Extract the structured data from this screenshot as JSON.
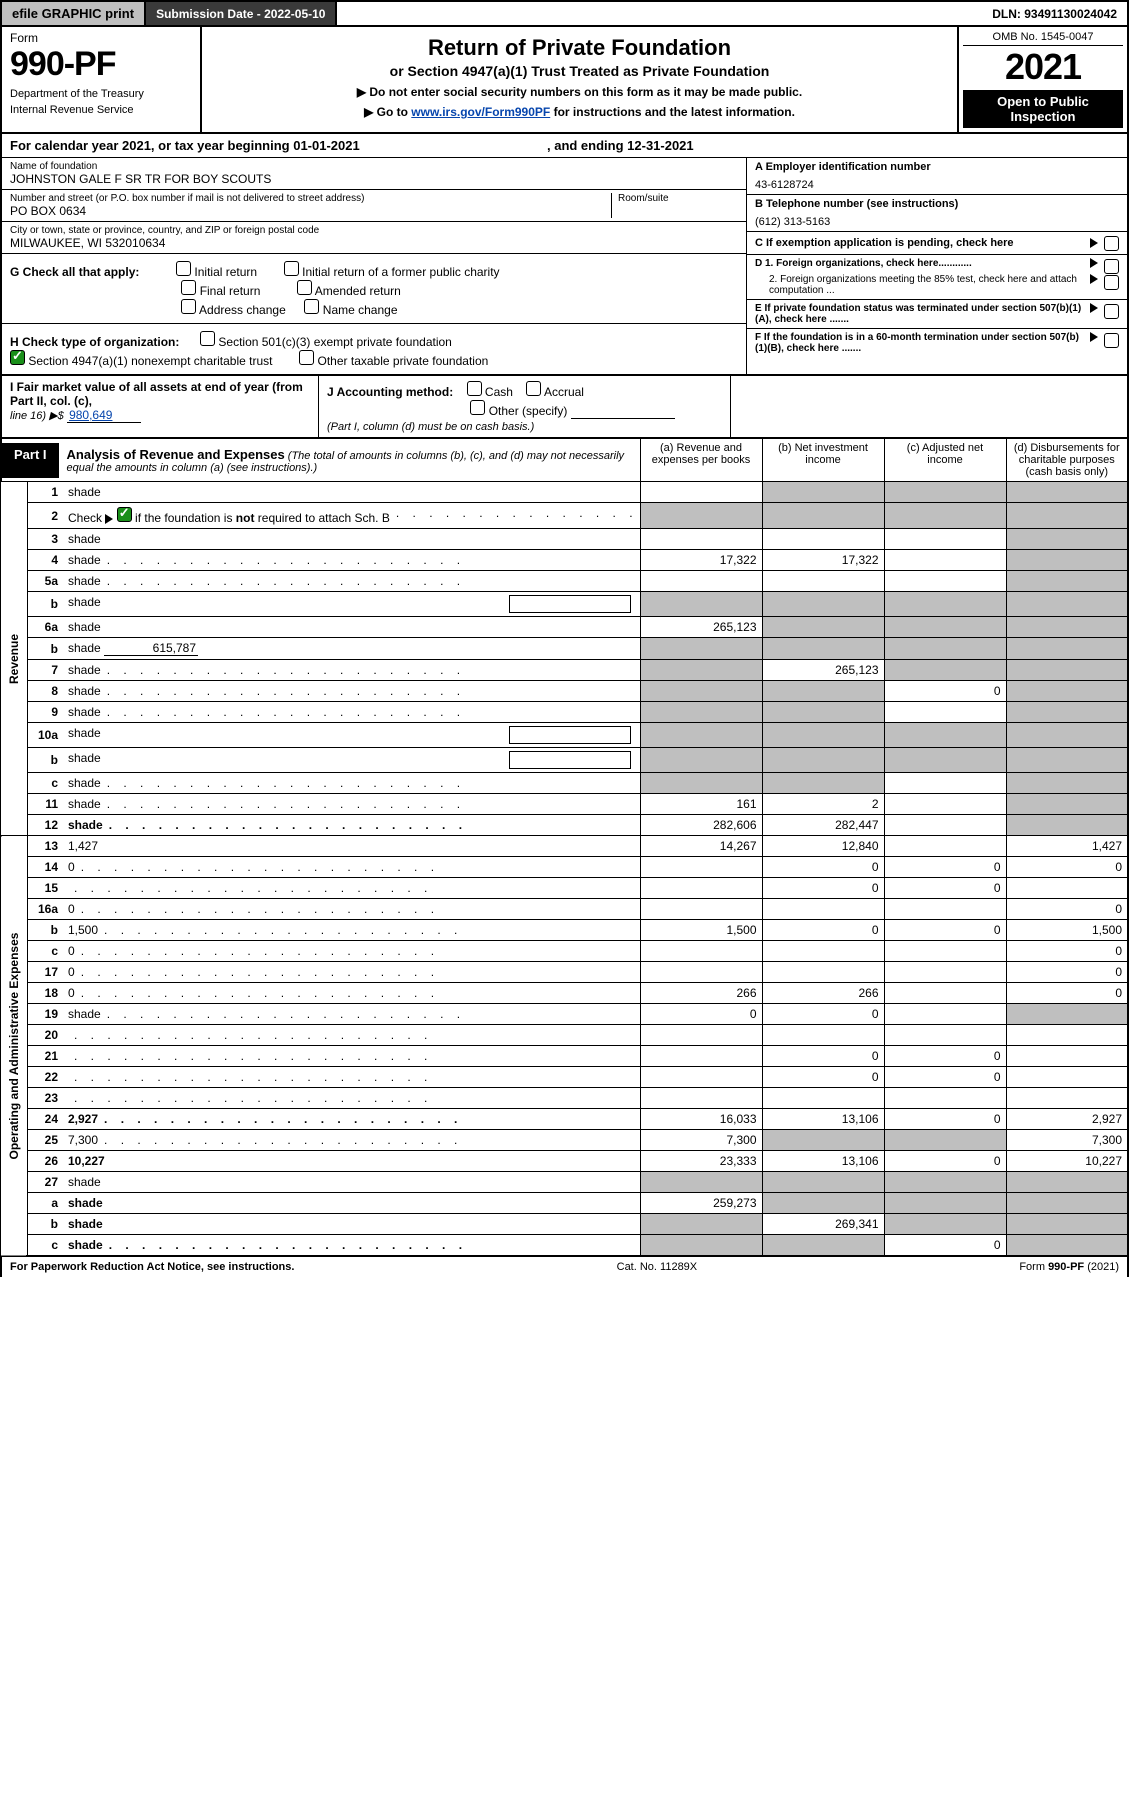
{
  "topbar": {
    "efile": "efile GRAPHIC print",
    "submission": "Submission Date - 2022-05-10",
    "dln": "DLN: 93491130024042"
  },
  "header": {
    "form_word": "Form",
    "form_num": "990-PF",
    "dept": "Department of the Treasury",
    "irs": "Internal Revenue Service",
    "title": "Return of Private Foundation",
    "subtitle": "or Section 4947(a)(1) Trust Treated as Private Foundation",
    "note1": "▶ Do not enter social security numbers on this form as it may be made public.",
    "note2_pre": "▶ Go to ",
    "note2_link": "www.irs.gov/Form990PF",
    "note2_post": " for instructions and the latest information.",
    "omb": "OMB No. 1545-0047",
    "year": "2021",
    "open1": "Open to Public",
    "open2": "Inspection"
  },
  "cal": {
    "line_a": "For calendar year 2021, or tax year beginning 01-01-2021",
    "line_b": ", and ending 12-31-2021"
  },
  "entity": {
    "name_lbl": "Name of foundation",
    "name": "JOHNSTON GALE F SR TR FOR BOY SCOUTS",
    "addr_lbl": "Number and street (or P.O. box number if mail is not delivered to street address)",
    "addr": "PO BOX 0634",
    "room_lbl": "Room/suite",
    "city_lbl": "City or town, state or province, country, and ZIP or foreign postal code",
    "city": "MILWAUKEE, WI  532010634",
    "a_lbl": "A Employer identification number",
    "a_val": "43-6128724",
    "b_lbl": "B Telephone number (see instructions)",
    "b_val": "(612) 313-5163",
    "c_lbl": "C If exemption application is pending, check here",
    "d1": "D 1. Foreign organizations, check here............",
    "d2": "2. Foreign organizations meeting the 85% test, check here and attach computation ...",
    "e": "E  If private foundation status was terminated under section 507(b)(1)(A), check here .......",
    "f": "F  If the foundation is in a 60-month termination under section 507(b)(1)(B), check here .......",
    "g_lbl": "G Check all that apply:",
    "g_opts": [
      "Initial return",
      "Initial return of a former public charity",
      "Final return",
      "Amended return",
      "Address change",
      "Name change"
    ],
    "h_lbl": "H Check type of organization:",
    "h_opts": [
      "Section 501(c)(3) exempt private foundation",
      "Section 4947(a)(1) nonexempt charitable trust",
      "Other taxable private foundation"
    ],
    "i_lbl": "I Fair market value of all assets at end of year (from Part II, col. (c),",
    "i_line16": "line 16) ▶$",
    "i_val": "980,649",
    "j_lbl": "J Accounting method:",
    "j_opts": [
      "Cash",
      "Accrual",
      "Other (specify)"
    ],
    "j_note": "(Part I, column (d) must be on cash basis.)"
  },
  "part1": {
    "tab": "Part I",
    "title": "Analysis of Revenue and Expenses",
    "title_note": " (The total of amounts in columns (b), (c), and (d) may not necessarily equal the amounts in column (a) (see instructions).)",
    "cols": {
      "a": "(a)   Revenue and expenses per books",
      "b": "(b)   Net investment income",
      "c": "(c)   Adjusted net income",
      "d": "(d)   Disbursements for charitable purposes (cash basis only)"
    }
  },
  "vlabels": {
    "rev": "Revenue",
    "exp": "Operating and Administrative Expenses"
  },
  "rows": [
    {
      "n": "1",
      "d": "shade",
      "a": "",
      "b": "shade",
      "c": "shade"
    },
    {
      "n": "2",
      "d": "shade",
      "a": "shade",
      "b": "shade",
      "c": "shade",
      "dots": true,
      "hasCheck": true,
      "notBold": "not"
    },
    {
      "n": "3",
      "d": "shade",
      "a": "",
      "b": "",
      "c": ""
    },
    {
      "n": "4",
      "d": "shade",
      "a": "17,322",
      "b": "17,322",
      "c": "",
      "dots": true
    },
    {
      "n": "5a",
      "d": "shade",
      "a": "",
      "b": "",
      "c": "",
      "dots": true
    },
    {
      "n": "b",
      "d": "shade",
      "a": "shade",
      "b": "shade",
      "c": "shade",
      "hasBlank": true
    },
    {
      "n": "6a",
      "d": "shade",
      "a": "265,123",
      "b": "shade",
      "c": "shade"
    },
    {
      "n": "b",
      "d": "shade",
      "a": "shade",
      "b": "shade",
      "c": "shade",
      "inlineVal": "615,787"
    },
    {
      "n": "7",
      "d": "shade",
      "a": "shade",
      "b": "265,123",
      "c": "shade",
      "dots": true
    },
    {
      "n": "8",
      "d": "shade",
      "a": "shade",
      "b": "shade",
      "c": "0",
      "dots": true
    },
    {
      "n": "9",
      "d": "shade",
      "a": "shade",
      "b": "shade",
      "c": "",
      "dots": true
    },
    {
      "n": "10a",
      "d": "shade",
      "a": "shade",
      "b": "shade",
      "c": "shade",
      "hasBlank": true
    },
    {
      "n": "b",
      "d": "shade",
      "a": "shade",
      "b": "shade",
      "c": "shade",
      "hasBlank": true,
      "dots": true
    },
    {
      "n": "c",
      "d": "shade",
      "a": "shade",
      "b": "shade",
      "c": "",
      "dots": true
    },
    {
      "n": "11",
      "d": "shade",
      "a": "161",
      "b": "2",
      "c": "",
      "dots": true
    },
    {
      "n": "12",
      "d": "shade",
      "a": "282,606",
      "b": "282,447",
      "c": "",
      "bold": true,
      "dots": true
    },
    {
      "n": "13",
      "d": "1,427",
      "a": "14,267",
      "b": "12,840",
      "c": "",
      "section": "exp"
    },
    {
      "n": "14",
      "d": "0",
      "a": "",
      "b": "0",
      "c": "0",
      "dots": true
    },
    {
      "n": "15",
      "d": "",
      "a": "",
      "b": "0",
      "c": "0",
      "dots": true
    },
    {
      "n": "16a",
      "d": "0",
      "a": "",
      "b": "",
      "c": "",
      "dots": true
    },
    {
      "n": "b",
      "d": "1,500",
      "a": "1,500",
      "b": "0",
      "c": "0",
      "dots": true
    },
    {
      "n": "c",
      "d": "0",
      "a": "",
      "b": "",
      "c": "",
      "dots": true
    },
    {
      "n": "17",
      "d": "0",
      "a": "",
      "b": "",
      "c": "",
      "dots": true
    },
    {
      "n": "18",
      "d": "0",
      "a": "266",
      "b": "266",
      "c": "",
      "dots": true
    },
    {
      "n": "19",
      "d": "shade",
      "a": "0",
      "b": "0",
      "c": "",
      "dots": true
    },
    {
      "n": "20",
      "d": "",
      "a": "",
      "b": "",
      "c": "",
      "dots": true
    },
    {
      "n": "21",
      "d": "",
      "a": "",
      "b": "0",
      "c": "0",
      "dots": true
    },
    {
      "n": "22",
      "d": "",
      "a": "",
      "b": "0",
      "c": "0",
      "dots": true
    },
    {
      "n": "23",
      "d": "",
      "a": "",
      "b": "",
      "c": "",
      "dots": true
    },
    {
      "n": "24",
      "d": "2,927",
      "a": "16,033",
      "b": "13,106",
      "c": "0",
      "bold": true,
      "dots": true
    },
    {
      "n": "25",
      "d": "7,300",
      "a": "7,300",
      "b": "shade",
      "c": "shade",
      "dots": true
    },
    {
      "n": "26",
      "d": "10,227",
      "a": "23,333",
      "b": "13,106",
      "c": "0",
      "bold": true
    },
    {
      "n": "27",
      "d": "shade",
      "a": "shade",
      "b": "shade",
      "c": "shade"
    },
    {
      "n": "a",
      "d": "shade",
      "a": "259,273",
      "b": "shade",
      "c": "shade",
      "bold": true
    },
    {
      "n": "b",
      "d": "shade",
      "a": "shade",
      "b": "269,341",
      "c": "shade",
      "bold": true
    },
    {
      "n": "c",
      "d": "shade",
      "a": "shade",
      "b": "shade",
      "c": "0",
      "bold": true,
      "dots": true
    }
  ],
  "footer": {
    "left": "For Paperwork Reduction Act Notice, see instructions.",
    "mid": "Cat. No. 11289X",
    "right": "Form 990-PF (2021)"
  },
  "colors": {
    "shade": "#bfbfbf",
    "link": "#0645ad",
    "check_green": "#1a8f1a"
  }
}
